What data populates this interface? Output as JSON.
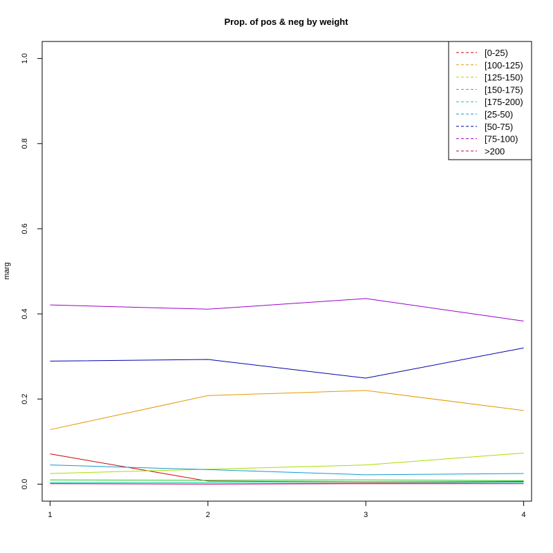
{
  "chart_data": {
    "type": "line",
    "title": "Prop. of pos & neg by weight",
    "xlabel": "",
    "ylabel": "marg",
    "x": [
      1,
      2,
      3,
      4
    ],
    "x_tick_labels": [
      "1",
      "2",
      "3",
      "4"
    ],
    "xlim": [
      0.95,
      4.05
    ],
    "ylim": [
      -0.04,
      1.04
    ],
    "y_ticks": [
      0.0,
      0.2,
      0.4,
      0.6,
      0.8,
      1.0
    ],
    "y_tick_labels": [
      "0.0",
      "0.2",
      "0.4",
      "0.6",
      "0.8",
      "1.0"
    ],
    "grid": false,
    "legend_position": "top-right",
    "legend_line_style": "dashed",
    "series": [
      {
        "name": "[0-25)",
        "color": "#CC0000",
        "values": [
          0.071,
          0.007,
          0.005,
          0.006
        ]
      },
      {
        "name": "[100-125)",
        "color": "#E09A00",
        "values": [
          0.128,
          0.208,
          0.22,
          0.173
        ]
      },
      {
        "name": "[125-150)",
        "color": "#AADD00",
        "values": [
          0.025,
          0.035,
          0.045,
          0.073
        ]
      },
      {
        "name": "[150-175)",
        "color": "#22CC22",
        "values": [
          0.01,
          0.009,
          0.01,
          0.008
        ]
      },
      {
        "name": "[175-200)",
        "color": "#00CCAA",
        "values": [
          0.003,
          0.003,
          0.002,
          0.004
        ]
      },
      {
        "name": "[25-50)",
        "color": "#1199CC",
        "values": [
          0.045,
          0.034,
          0.022,
          0.025
        ]
      },
      {
        "name": "[50-75)",
        "color": "#0000AA",
        "values": [
          0.289,
          0.293,
          0.249,
          0.32
        ]
      },
      {
        "name": "[75-100)",
        "color": "#9900CC",
        "values": [
          0.421,
          0.411,
          0.436,
          0.383
        ]
      },
      {
        "name": ">200",
        "color": "#CC0066",
        "values": [
          0.001,
          0.0,
          0.001,
          0.001
        ]
      }
    ]
  }
}
